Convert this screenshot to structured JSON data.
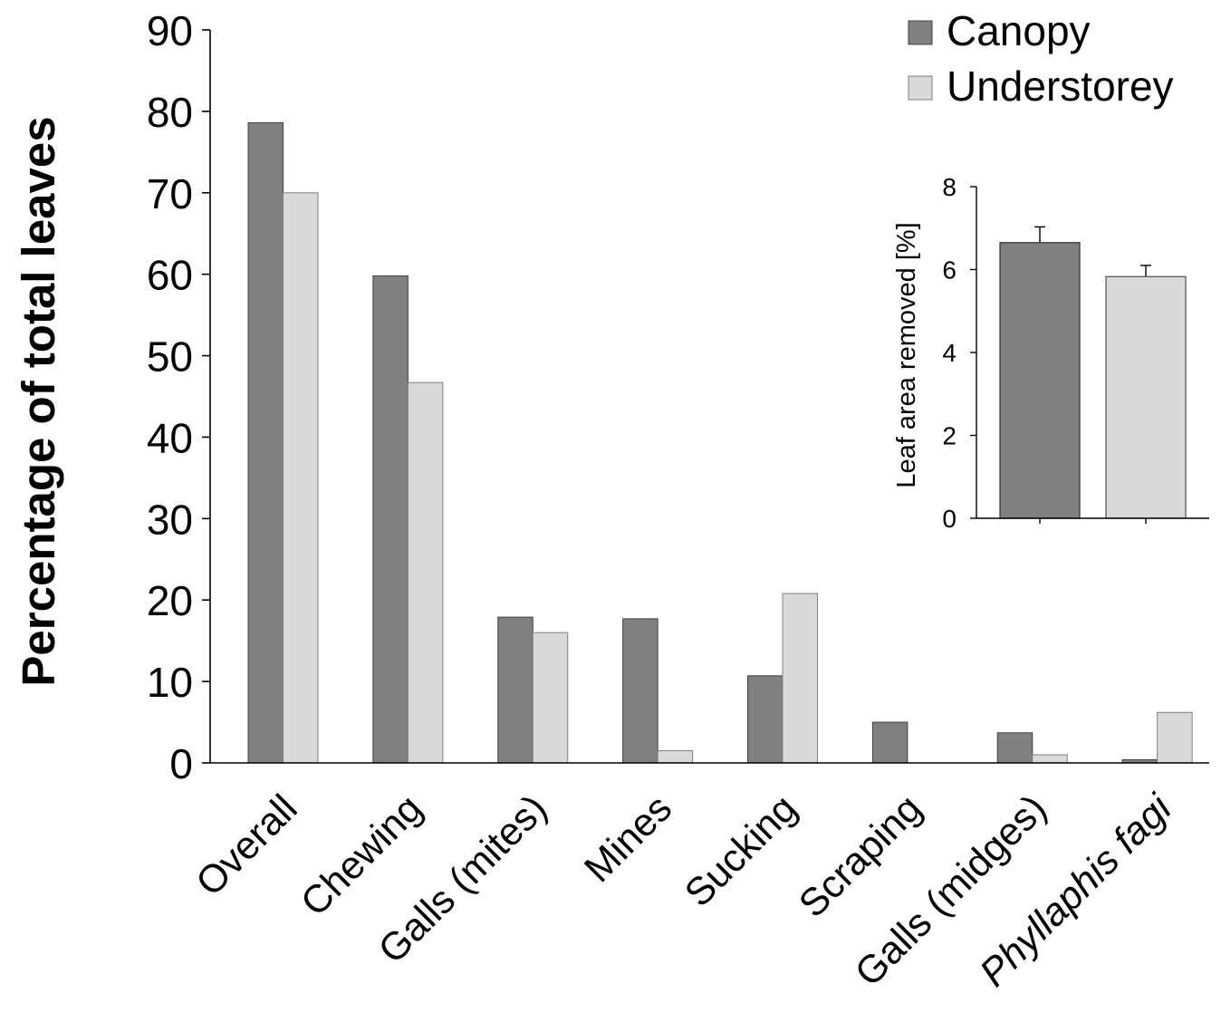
{
  "chart_data": [
    {
      "type": "bar",
      "title": "",
      "xlabel": "",
      "ylabel": "Percentage of total leaves",
      "ylim": [
        0,
        90
      ],
      "yticks": [
        "0",
        "10",
        "20",
        "30",
        "40",
        "50",
        "60",
        "70",
        "80",
        "90"
      ],
      "categories": [
        "Overall",
        "Chewing",
        "Galls (mites)",
        "Mines",
        "Sucking",
        "Scraping",
        "Galls (midges)",
        "Phyllaphis fagi"
      ],
      "series": [
        {
          "name": "Canopy",
          "color": "#808080",
          "values": [
            78.6,
            59.8,
            17.9,
            17.7,
            10.7,
            5.0,
            3.7,
            0.4
          ]
        },
        {
          "name": "Understorey",
          "color": "#d9d9d9",
          "values": [
            70.0,
            46.7,
            16.0,
            1.5,
            20.8,
            0.0,
            1.0,
            6.2
          ]
        }
      ],
      "legend_position": "top-right",
      "grid": false
    },
    {
      "type": "bar",
      "title": "",
      "xlabel": "",
      "ylabel": "Leaf area removed [%]",
      "ylim": [
        0,
        8
      ],
      "yticks": [
        "0",
        "2",
        "4",
        "6",
        "8"
      ],
      "categories": [
        "Canopy",
        "Understorey"
      ],
      "values": [
        6.65,
        5.83
      ],
      "errors": [
        0.38,
        0.27
      ],
      "colors": [
        "#808080",
        "#d9d9d9"
      ],
      "grid": false
    }
  ]
}
